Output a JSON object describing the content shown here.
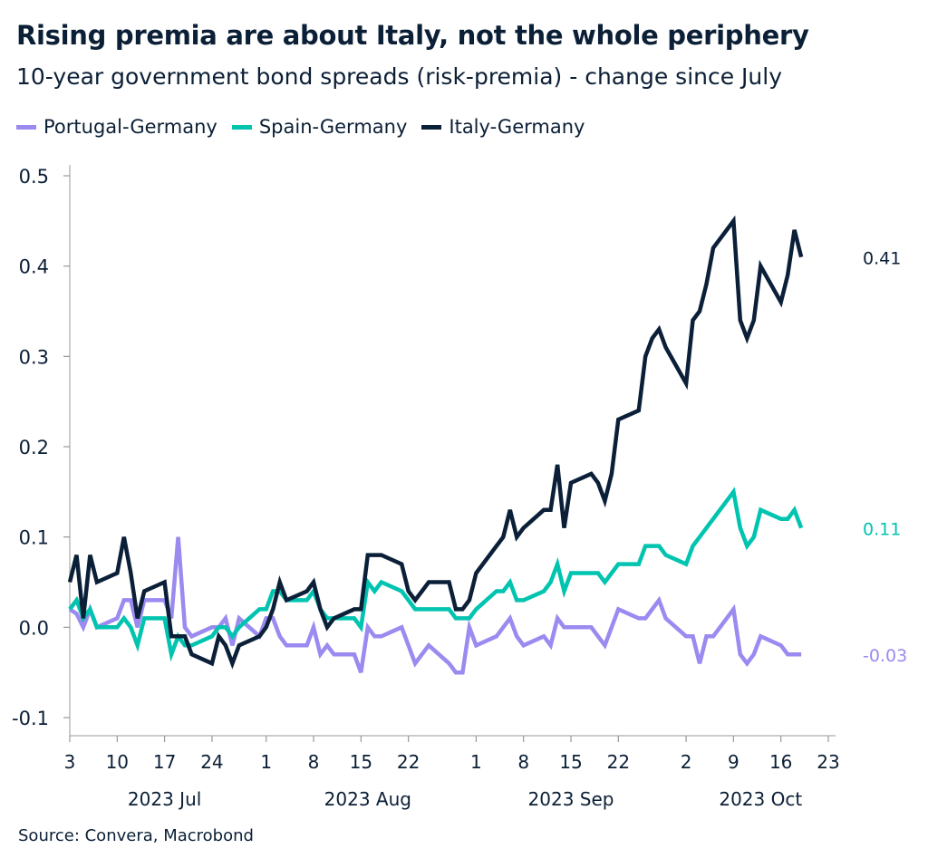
{
  "title": "Rising premia are about Italy, not the whole periphery",
  "subtitle": "10-year government bond spreads (risk-premia) - change since July",
  "source": "Source: Convera, Macrobond",
  "chart_data": {
    "type": "line",
    "title": "Rising premia are about Italy, not the whole periphery",
    "subtitle": "10-year government bond spreads (risk-premia) - change since July",
    "xlim": [
      "2023-07-03",
      "2023-10-23"
    ],
    "ylim": [
      -0.1,
      0.5
    ],
    "yticks": [
      -0.1,
      0.0,
      0.1,
      0.2,
      0.3,
      0.4,
      0.5
    ],
    "ytick_labels": [
      "-0.1",
      "0.0",
      "0.1",
      "0.2",
      "0.3",
      "0.4",
      "0.5"
    ],
    "xticks": [
      "2023-07-03",
      "2023-07-10",
      "2023-07-17",
      "2023-07-24",
      "2023-08-01",
      "2023-08-08",
      "2023-08-15",
      "2023-08-22",
      "2023-09-01",
      "2023-09-08",
      "2023-09-15",
      "2023-09-22",
      "2023-10-02",
      "2023-10-09",
      "2023-10-16",
      "2023-10-23"
    ],
    "xtick_labels": [
      "3",
      "10",
      "17",
      "24",
      "1",
      "8",
      "15",
      "22",
      "1",
      "8",
      "15",
      "22",
      "2",
      "9",
      "16",
      "23"
    ],
    "month_labels": [
      {
        "label": "2023 Jul",
        "date": "2023-07-17"
      },
      {
        "label": "2023 Aug",
        "date": "2023-08-16"
      },
      {
        "label": "2023 Sep",
        "date": "2023-09-15"
      },
      {
        "label": "2023 Oct",
        "date": "2023-10-13"
      }
    ],
    "grid": false,
    "legend_position": "top-left",
    "x": [
      "2023-07-03",
      "2023-07-04",
      "2023-07-05",
      "2023-07-06",
      "2023-07-07",
      "2023-07-10",
      "2023-07-11",
      "2023-07-12",
      "2023-07-13",
      "2023-07-14",
      "2023-07-17",
      "2023-07-18",
      "2023-07-19",
      "2023-07-20",
      "2023-07-21",
      "2023-07-24",
      "2023-07-25",
      "2023-07-26",
      "2023-07-27",
      "2023-07-28",
      "2023-07-31",
      "2023-08-01",
      "2023-08-02",
      "2023-08-03",
      "2023-08-04",
      "2023-08-07",
      "2023-08-08",
      "2023-08-09",
      "2023-08-10",
      "2023-08-11",
      "2023-08-14",
      "2023-08-15",
      "2023-08-16",
      "2023-08-17",
      "2023-08-18",
      "2023-08-21",
      "2023-08-22",
      "2023-08-23",
      "2023-08-24",
      "2023-08-25",
      "2023-08-28",
      "2023-08-29",
      "2023-08-30",
      "2023-08-31",
      "2023-09-01",
      "2023-09-04",
      "2023-09-05",
      "2023-09-06",
      "2023-09-07",
      "2023-09-08",
      "2023-09-11",
      "2023-09-12",
      "2023-09-13",
      "2023-09-14",
      "2023-09-15",
      "2023-09-18",
      "2023-09-19",
      "2023-09-20",
      "2023-09-21",
      "2023-09-22",
      "2023-09-25",
      "2023-09-26",
      "2023-09-27",
      "2023-09-28",
      "2023-09-29",
      "2023-10-02",
      "2023-10-03",
      "2023-10-04",
      "2023-10-05",
      "2023-10-06",
      "2023-10-09",
      "2023-10-10",
      "2023-10-11",
      "2023-10-12",
      "2023-10-13",
      "2023-10-16",
      "2023-10-17",
      "2023-10-18",
      "2023-10-19"
    ],
    "series": [
      {
        "name": "Portugal-Germany",
        "color": "#9b8af0",
        "end_label": "-0.03",
        "values": [
          0.02,
          0.015,
          0.0,
          0.02,
          0.0,
          0.01,
          0.03,
          0.03,
          0.0,
          0.03,
          0.03,
          0.01,
          0.1,
          0.0,
          -0.01,
          0.0,
          0.0,
          0.01,
          -0.02,
          0.01,
          -0.01,
          0.01,
          0.01,
          -0.01,
          -0.02,
          -0.02,
          0.0,
          -0.03,
          -0.02,
          -0.03,
          -0.03,
          -0.05,
          0.0,
          -0.01,
          -0.01,
          0.0,
          -0.02,
          -0.04,
          -0.03,
          -0.02,
          -0.04,
          -0.05,
          -0.05,
          0.0,
          -0.02,
          -0.01,
          0.0,
          0.01,
          -0.01,
          -0.02,
          -0.01,
          -0.02,
          0.01,
          0.0,
          0.0,
          0.0,
          -0.01,
          -0.02,
          0.0,
          0.02,
          0.01,
          0.01,
          0.02,
          0.03,
          0.01,
          -0.01,
          -0.01,
          -0.04,
          -0.01,
          -0.01,
          0.02,
          -0.03,
          -0.04,
          -0.03,
          -0.01,
          -0.02,
          -0.03,
          -0.03,
          -0.03
        ]
      },
      {
        "name": "Spain-Germany",
        "color": "#00c4b0",
        "end_label": "0.11",
        "values": [
          0.02,
          0.03,
          0.01,
          0.02,
          0.0,
          0.0,
          0.01,
          0.0,
          -0.02,
          0.01,
          0.01,
          -0.03,
          -0.01,
          -0.02,
          -0.02,
          -0.01,
          0.0,
          0.0,
          -0.01,
          0.0,
          0.02,
          0.02,
          0.04,
          0.04,
          0.03,
          0.03,
          0.04,
          0.02,
          0.01,
          0.01,
          0.01,
          0.0,
          0.05,
          0.04,
          0.05,
          0.04,
          0.03,
          0.02,
          0.02,
          0.02,
          0.02,
          0.01,
          0.01,
          0.01,
          0.02,
          0.04,
          0.04,
          0.05,
          0.03,
          0.03,
          0.04,
          0.05,
          0.07,
          0.04,
          0.06,
          0.06,
          0.06,
          0.05,
          0.06,
          0.07,
          0.07,
          0.09,
          0.09,
          0.09,
          0.08,
          0.07,
          0.09,
          0.1,
          0.11,
          0.12,
          0.15,
          0.11,
          0.09,
          0.1,
          0.13,
          0.12,
          0.12,
          0.13,
          0.11
        ]
      },
      {
        "name": "Italy-Germany",
        "color": "#0b2038",
        "end_label": "0.41",
        "values": [
          0.05,
          0.08,
          0.01,
          0.08,
          0.05,
          0.06,
          0.1,
          0.06,
          0.01,
          0.04,
          0.05,
          -0.01,
          -0.01,
          -0.01,
          -0.03,
          -0.04,
          -0.01,
          -0.02,
          -0.04,
          -0.02,
          -0.01,
          0.0,
          0.02,
          0.05,
          0.03,
          0.04,
          0.05,
          0.02,
          0.0,
          0.01,
          0.02,
          0.02,
          0.08,
          0.08,
          0.08,
          0.07,
          0.04,
          0.03,
          0.04,
          0.05,
          0.05,
          0.02,
          0.02,
          0.03,
          0.06,
          0.09,
          0.1,
          0.13,
          0.1,
          0.11,
          0.13,
          0.13,
          0.18,
          0.11,
          0.16,
          0.17,
          0.16,
          0.14,
          0.17,
          0.23,
          0.24,
          0.3,
          0.32,
          0.33,
          0.31,
          0.27,
          0.34,
          0.35,
          0.38,
          0.42,
          0.45,
          0.34,
          0.32,
          0.34,
          0.4,
          0.36,
          0.39,
          0.44,
          0.41
        ]
      }
    ]
  }
}
